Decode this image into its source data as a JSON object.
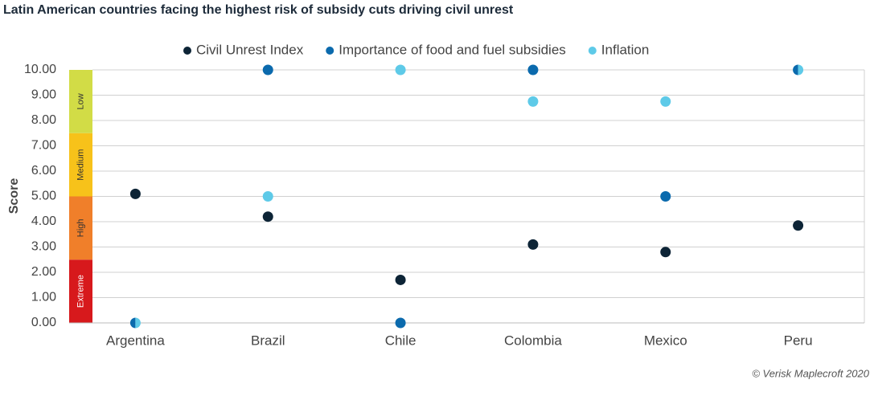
{
  "chart_data": {
    "type": "dot",
    "title": "Latin American countries facing the highest risk of subsidy cuts driving civil unrest",
    "y_label": "Score",
    "source": "© Verisk Maplecroft 2020",
    "categories": [
      "Argentina",
      "Brazil",
      "Chile",
      "Colombia",
      "Mexico",
      "Peru"
    ],
    "series": [
      {
        "name": "Civil Unrest Index",
        "color": "#0d2436",
        "values": [
          5.1,
          4.2,
          1.7,
          3.1,
          2.8,
          3.85
        ]
      },
      {
        "name": "Importance of food and fuel subsidies",
        "color": "#0b6aad",
        "values": [
          0,
          10,
          0,
          10,
          5,
          10
        ]
      },
      {
        "name": "Inflation",
        "color": "#5ecae8",
        "values": [
          0,
          5,
          10,
          8.75,
          8.75,
          10
        ]
      }
    ],
    "bands": [
      {
        "label": "Extreme",
        "from": 0,
        "to": 2.5,
        "color": "#d7191c"
      },
      {
        "label": "High",
        "from": 2.5,
        "to": 5,
        "color": "#f07f2a"
      },
      {
        "label": "Medium",
        "from": 5,
        "to": 7.5,
        "color": "#f7c21a"
      },
      {
        "label": "Low",
        "from": 7.5,
        "to": 10,
        "color": "#d2dc46"
      }
    ],
    "ylim": [
      0,
      10
    ],
    "yticks": [
      {
        "value": 0,
        "label": "0.00"
      },
      {
        "value": 1,
        "label": "1.00"
      },
      {
        "value": 2,
        "label": "2.00"
      },
      {
        "value": 3,
        "label": "3.00"
      },
      {
        "value": 4,
        "label": "4.00"
      },
      {
        "value": 5,
        "label": "5.00"
      },
      {
        "value": 6,
        "label": "6.00"
      },
      {
        "value": 7,
        "label": "7.00"
      },
      {
        "value": 8,
        "label": "8.00"
      },
      {
        "value": 9,
        "label": "9.00"
      },
      {
        "value": 10,
        "label": "10.00"
      }
    ],
    "grid": true
  }
}
